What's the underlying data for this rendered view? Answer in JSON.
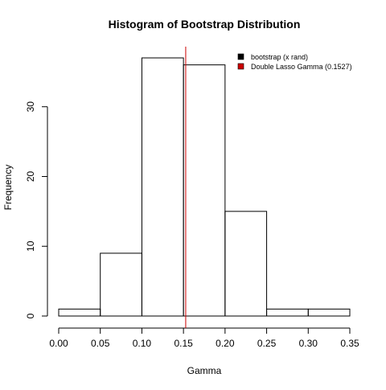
{
  "chart_data": {
    "type": "bar",
    "title": "Histogram of Bootstrap Distribution",
    "xlabel": "Gamma",
    "ylabel": "Frequency",
    "bins": [
      {
        "from": 0.0,
        "to": 0.05,
        "count": 1
      },
      {
        "from": 0.05,
        "to": 0.1,
        "count": 9
      },
      {
        "from": 0.1,
        "to": 0.15,
        "count": 37
      },
      {
        "from": 0.15,
        "to": 0.2,
        "count": 36
      },
      {
        "from": 0.2,
        "to": 0.25,
        "count": 15
      },
      {
        "from": 0.25,
        "to": 0.3,
        "count": 1
      },
      {
        "from": 0.3,
        "to": 0.35,
        "count": 1
      }
    ],
    "xlim": [
      0,
      0.35
    ],
    "ylim": [
      0,
      37
    ],
    "xticks": [
      "0.00",
      "0.05",
      "0.10",
      "0.15",
      "0.20",
      "0.25",
      "0.30",
      "0.35"
    ],
    "xtick_values": [
      0,
      0.05,
      0.1,
      0.15,
      0.2,
      0.25,
      0.3,
      0.35
    ],
    "yticks": [
      "0",
      "10",
      "20",
      "30"
    ],
    "ytick_values": [
      0,
      10,
      20,
      30
    ],
    "reference_line": {
      "value": 0.1527,
      "color": "#cc0000"
    },
    "legend": {
      "placement": "top-right",
      "items": [
        {
          "label": "bootstrap (x rand)",
          "color": "#000000"
        },
        {
          "label": "Double Lasso Gamma (0.1527)",
          "color": "#cc0000"
        }
      ]
    },
    "grid": false
  }
}
